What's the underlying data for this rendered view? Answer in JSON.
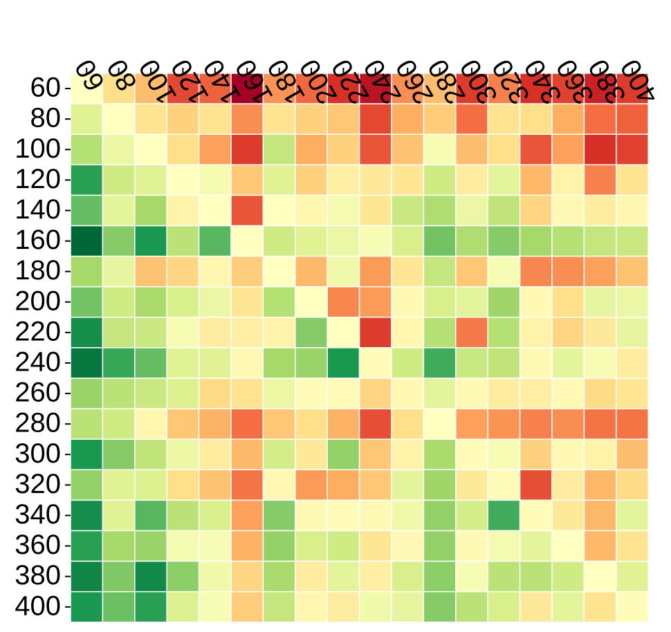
{
  "chart_data": {
    "type": "heatmap",
    "title": "",
    "xlabel": "",
    "ylabel": "",
    "x_categories": [
      "60",
      "80",
      "100",
      "120",
      "140",
      "160",
      "180",
      "200",
      "220",
      "240",
      "260",
      "280",
      "300",
      "320",
      "340",
      "360",
      "380",
      "400"
    ],
    "y_categories": [
      "60",
      "80",
      "100",
      "120",
      "140",
      "160",
      "180",
      "200",
      "220",
      "240",
      "260",
      "280",
      "300",
      "320",
      "340",
      "360",
      "380",
      "400"
    ],
    "x_axis_position": "top",
    "y_axis_position": "left",
    "colormap": "RdYlGn_r",
    "value_range": [
      0,
      1
    ],
    "grid": false,
    "values": [
      [
        0.5,
        0.6,
        0.67,
        0.86,
        0.82,
        1.0,
        0.74,
        0.81,
        0.9,
        0.96,
        0.75,
        0.67,
        0.88,
        0.77,
        0.9,
        0.87,
        0.93,
        0.88
      ],
      [
        0.42,
        0.5,
        0.59,
        0.63,
        0.59,
        0.75,
        0.59,
        0.63,
        0.65,
        0.86,
        0.7,
        0.64,
        0.8,
        0.59,
        0.6,
        0.7,
        0.8,
        0.82
      ],
      [
        0.33,
        0.45,
        0.5,
        0.6,
        0.72,
        0.88,
        0.36,
        0.7,
        0.63,
        0.84,
        0.66,
        0.48,
        0.67,
        0.6,
        0.84,
        0.72,
        0.9,
        0.87
      ],
      [
        0.12,
        0.38,
        0.42,
        0.5,
        0.47,
        0.65,
        0.42,
        0.63,
        0.55,
        0.57,
        0.58,
        0.38,
        0.56,
        0.43,
        0.68,
        0.54,
        0.77,
        0.59
      ],
      [
        0.2,
        0.43,
        0.3,
        0.54,
        0.5,
        0.84,
        0.5,
        0.53,
        0.47,
        0.58,
        0.37,
        0.32,
        0.45,
        0.35,
        0.62,
        0.52,
        0.56,
        0.53
      ],
      [
        0.0,
        0.25,
        0.1,
        0.34,
        0.18,
        0.5,
        0.38,
        0.42,
        0.45,
        0.48,
        0.4,
        0.22,
        0.32,
        0.25,
        0.3,
        0.33,
        0.36,
        0.37
      ],
      [
        0.3,
        0.44,
        0.66,
        0.62,
        0.53,
        0.64,
        0.5,
        0.68,
        0.46,
        0.73,
        0.58,
        0.36,
        0.65,
        0.48,
        0.76,
        0.75,
        0.72,
        0.66
      ],
      [
        0.22,
        0.38,
        0.31,
        0.4,
        0.45,
        0.58,
        0.33,
        0.5,
        0.76,
        0.73,
        0.52,
        0.4,
        0.43,
        0.29,
        0.52,
        0.6,
        0.44,
        0.45
      ],
      [
        0.08,
        0.36,
        0.37,
        0.48,
        0.56,
        0.55,
        0.54,
        0.25,
        0.5,
        0.88,
        0.53,
        0.33,
        0.78,
        0.33,
        0.54,
        0.62,
        0.57,
        0.44
      ],
      [
        0.03,
        0.14,
        0.2,
        0.42,
        0.42,
        0.52,
        0.3,
        0.28,
        0.1,
        0.51,
        0.38,
        0.15,
        0.37,
        0.35,
        0.52,
        0.43,
        0.48,
        0.56
      ],
      [
        0.28,
        0.34,
        0.37,
        0.41,
        0.61,
        0.59,
        0.45,
        0.51,
        0.51,
        0.62,
        0.52,
        0.43,
        0.52,
        0.56,
        0.55,
        0.52,
        0.61,
        0.58
      ],
      [
        0.34,
        0.38,
        0.53,
        0.65,
        0.69,
        0.8,
        0.65,
        0.6,
        0.69,
        0.85,
        0.6,
        0.5,
        0.72,
        0.74,
        0.77,
        0.75,
        0.79,
        0.79
      ],
      [
        0.1,
        0.25,
        0.35,
        0.45,
        0.56,
        0.68,
        0.39,
        0.57,
        0.27,
        0.65,
        0.54,
        0.31,
        0.51,
        0.48,
        0.63,
        0.52,
        0.54,
        0.67
      ],
      [
        0.27,
        0.42,
        0.41,
        0.6,
        0.66,
        0.79,
        0.52,
        0.73,
        0.7,
        0.65,
        0.43,
        0.29,
        0.57,
        0.51,
        0.85,
        0.56,
        0.68,
        0.61
      ],
      [
        0.08,
        0.42,
        0.18,
        0.34,
        0.4,
        0.72,
        0.25,
        0.52,
        0.51,
        0.52,
        0.46,
        0.27,
        0.39,
        0.15,
        0.51,
        0.57,
        0.68,
        0.43
      ],
      [
        0.12,
        0.3,
        0.28,
        0.47,
        0.48,
        0.69,
        0.27,
        0.4,
        0.38,
        0.58,
        0.52,
        0.27,
        0.52,
        0.47,
        0.43,
        0.5,
        0.68,
        0.59
      ],
      [
        0.06,
        0.24,
        0.07,
        0.26,
        0.46,
        0.62,
        0.31,
        0.56,
        0.43,
        0.55,
        0.4,
        0.26,
        0.48,
        0.34,
        0.34,
        0.38,
        0.5,
        0.42
      ],
      [
        0.1,
        0.21,
        0.12,
        0.41,
        0.48,
        0.64,
        0.36,
        0.53,
        0.56,
        0.46,
        0.44,
        0.25,
        0.34,
        0.4,
        0.57,
        0.43,
        0.59,
        0.51
      ]
    ]
  }
}
